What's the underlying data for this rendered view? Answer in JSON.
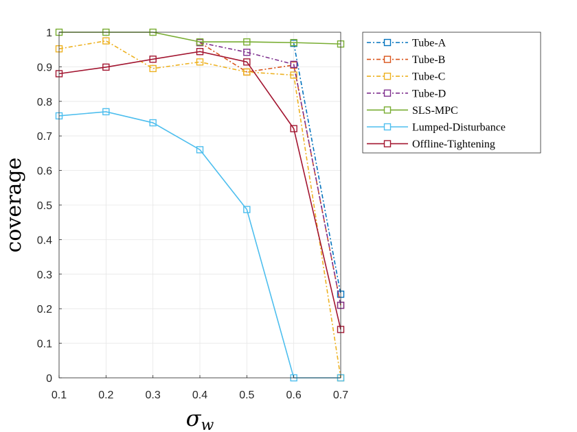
{
  "chart_data": {
    "type": "line",
    "xlabel": "σw",
    "ylabel": "coverage",
    "xlim": [
      0.1,
      0.7
    ],
    "ylim": [
      0,
      1
    ],
    "xticks": [
      "0.1",
      "0.2",
      "0.3",
      "0.4",
      "0.5",
      "0.6",
      "0.7"
    ],
    "yticks": [
      "0",
      "0.1",
      "0.2",
      "0.3",
      "0.4",
      "0.5",
      "0.6",
      "0.7",
      "0.8",
      "0.9",
      "1"
    ],
    "grid": true,
    "legend_position": "top-right outside",
    "x": [
      0.1,
      0.2,
      0.3,
      0.4,
      0.5,
      0.6,
      0.7
    ],
    "series": [
      {
        "name": "Tube-A",
        "color": "#0072BD",
        "dash": "dash-dot",
        "values": [
          null,
          null,
          null,
          null,
          null,
          0.968,
          0.242
        ]
      },
      {
        "name": "Tube-B",
        "color": "#D95319",
        "dash": "dash-dot",
        "values": [
          null,
          null,
          null,
          0.97,
          0.885,
          0.905,
          0.21
        ]
      },
      {
        "name": "Tube-C",
        "color": "#EDB120",
        "dash": "dash-dot",
        "values": [
          0.952,
          0.975,
          0.895,
          0.914,
          0.885,
          0.876,
          0.0
        ]
      },
      {
        "name": "Tube-D",
        "color": "#7E2F8E",
        "dash": "dash-dot",
        "values": [
          null,
          null,
          null,
          0.97,
          0.942,
          0.907,
          0.21
        ]
      },
      {
        "name": "SLS-MPC",
        "color": "#77AC30",
        "dash": "solid",
        "values": [
          1.0,
          1.0,
          1.0,
          0.972,
          0.972,
          0.97,
          0.966
        ]
      },
      {
        "name": "Lumped-Disturbance",
        "color": "#4DBEEE",
        "dash": "solid",
        "values": [
          0.758,
          0.77,
          0.738,
          0.66,
          0.487,
          0.0,
          0.0
        ]
      },
      {
        "name": "Offline-Tightening",
        "color": "#A2142F",
        "dash": "solid",
        "values": [
          0.88,
          0.899,
          0.922,
          0.944,
          0.914,
          0.721,
          0.14
        ]
      }
    ]
  }
}
